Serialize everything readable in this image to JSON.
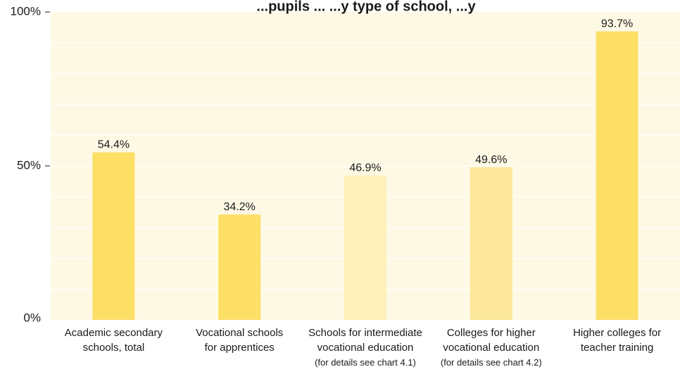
{
  "chart_data": {
    "type": "bar",
    "title": "...pupils ... ...y type of school, ...y",
    "categories": [
      {
        "lines": [
          "Academic secondary",
          "schools, total"
        ],
        "note": ""
      },
      {
        "lines": [
          "Vocational schools",
          "for apprentices"
        ],
        "note": ""
      },
      {
        "lines": [
          "Schools for intermediate",
          "vocational education"
        ],
        "note": "(for details see chart 4.1)"
      },
      {
        "lines": [
          "Colleges for higher",
          "vocational education"
        ],
        "note": "(for details see chart 4.2)"
      },
      {
        "lines": [
          "Higher colleges for",
          "teacher training"
        ],
        "note": ""
      }
    ],
    "values": [
      54.4,
      34.2,
      46.9,
      49.6,
      93.7
    ],
    "value_labels": [
      "54.4%",
      "34.2%",
      "46.9%",
      "49.6%",
      "93.7%"
    ],
    "bar_colors": [
      "#FDDF66",
      "#FDDF66",
      "#FEF0B8",
      "#FDE79A",
      "#FDDF66"
    ],
    "ylim": [
      0,
      100
    ],
    "yticks": [
      {
        "value": 0,
        "label": "0%"
      },
      {
        "value": 50,
        "label": "50%"
      },
      {
        "value": 100,
        "label": "100%"
      }
    ],
    "grid": true,
    "colors": {
      "plot_background": "#FEF9E4",
      "grid": "#FFFFFF",
      "axis": "#1a1a1a"
    }
  }
}
